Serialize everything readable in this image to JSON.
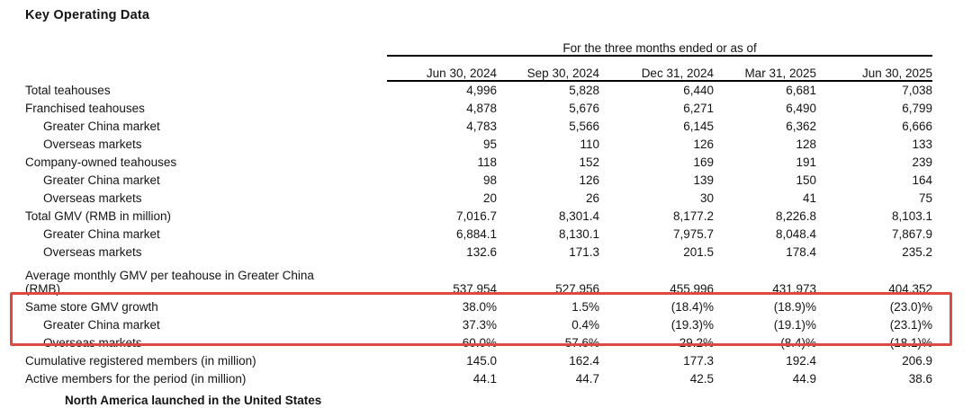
{
  "page": {
    "title": "Key Operating Data"
  },
  "table": {
    "period_header": "For the three months ended or as of",
    "columns": [
      "Jun 30, 2024",
      "Sep 30, 2024",
      "Dec 31, 2024",
      "Mar 31, 2025",
      "Jun 30, 2025"
    ],
    "rows": [
      {
        "label": "Total teahouses",
        "indent": 0,
        "bold": true,
        "values": [
          "4,996",
          "5,828",
          "6,440",
          "6,681",
          "7,038"
        ]
      },
      {
        "label": "Franchised teahouses",
        "indent": 0,
        "bold": false,
        "values": [
          "4,878",
          "5,676",
          "6,271",
          "6,490",
          "6,799"
        ]
      },
      {
        "label": "Greater China market",
        "indent": 1,
        "bold": false,
        "values": [
          "4,783",
          "5,566",
          "6,145",
          "6,362",
          "6,666"
        ]
      },
      {
        "label": "Overseas markets",
        "indent": 1,
        "bold": false,
        "values": [
          "95",
          "110",
          "126",
          "128",
          "133"
        ]
      },
      {
        "label": "Company-owned teahouses",
        "indent": 0,
        "bold": false,
        "values": [
          "118",
          "152",
          "169",
          "191",
          "239"
        ],
        "bold_cells": [
          1
        ]
      },
      {
        "label": "Greater China market",
        "indent": 1,
        "bold": false,
        "values": [
          "98",
          "126",
          "139",
          "150",
          "164"
        ]
      },
      {
        "label": "Overseas markets",
        "indent": 1,
        "bold": false,
        "values": [
          "20",
          "26",
          "30",
          "41",
          "75"
        ],
        "bold_cells": [
          1
        ]
      },
      {
        "label": "Total GMV (RMB in million)",
        "indent": 0,
        "bold": true,
        "values": [
          "7,016.7",
          "8,301.4",
          "8,177.2",
          "8,226.8",
          "8,103.1"
        ]
      },
      {
        "label": "Greater China market",
        "indent": 1,
        "bold": false,
        "values": [
          "6,884.1",
          "8,130.1",
          "7,975.7",
          "8,048.4",
          "7,867.9"
        ]
      },
      {
        "label": "Overseas markets",
        "indent": 1,
        "bold": false,
        "values": [
          "132.6",
          "171.3",
          "201.5",
          "178.4",
          "235.2"
        ]
      },
      {
        "label": "Average monthly GMV per teahouse in Greater China (RMB)",
        "label_lines": [
          "Average monthly GMV per teahouse in Greater China",
          "(RMB)"
        ],
        "indent": 0,
        "bold": true,
        "values": [
          "537,954",
          "527,956",
          "455,996",
          "431,973",
          "404,352"
        ]
      },
      {
        "label": "Same store GMV growth",
        "indent": 0,
        "bold": true,
        "highlighted": true,
        "values": [
          "38.0%",
          "1.5%",
          "(18.4)%",
          "(18.9)%",
          "(23.0)%"
        ]
      },
      {
        "label": "Greater China market",
        "indent": 1,
        "bold": false,
        "highlighted": true,
        "values": [
          "37.3%",
          "0.4%",
          "(19.3)%",
          "(19.1)%",
          "(23.1)%"
        ]
      },
      {
        "label": "Overseas markets",
        "indent": 1,
        "bold": false,
        "highlighted": true,
        "values": [
          "60.0%",
          "57.6%",
          "29.2%",
          "(8.4)%",
          "(18.1)%"
        ]
      },
      {
        "label": "Cumulative registered members (in million)",
        "indent": 0,
        "bold": true,
        "values": [
          "145.0",
          "162.4",
          "177.3",
          "192.4",
          "206.9"
        ]
      },
      {
        "label": "Active members for the period (in million)",
        "indent": 0,
        "bold": true,
        "values": [
          "44.1",
          "44.7",
          "42.5",
          "44.9",
          "38.6"
        ]
      }
    ]
  },
  "highlight": {
    "border_color": "#dd4a41",
    "note": "red annotation box around Same store GMV growth rows"
  },
  "footer": {
    "truncated_text": "North America launched in the United States"
  }
}
